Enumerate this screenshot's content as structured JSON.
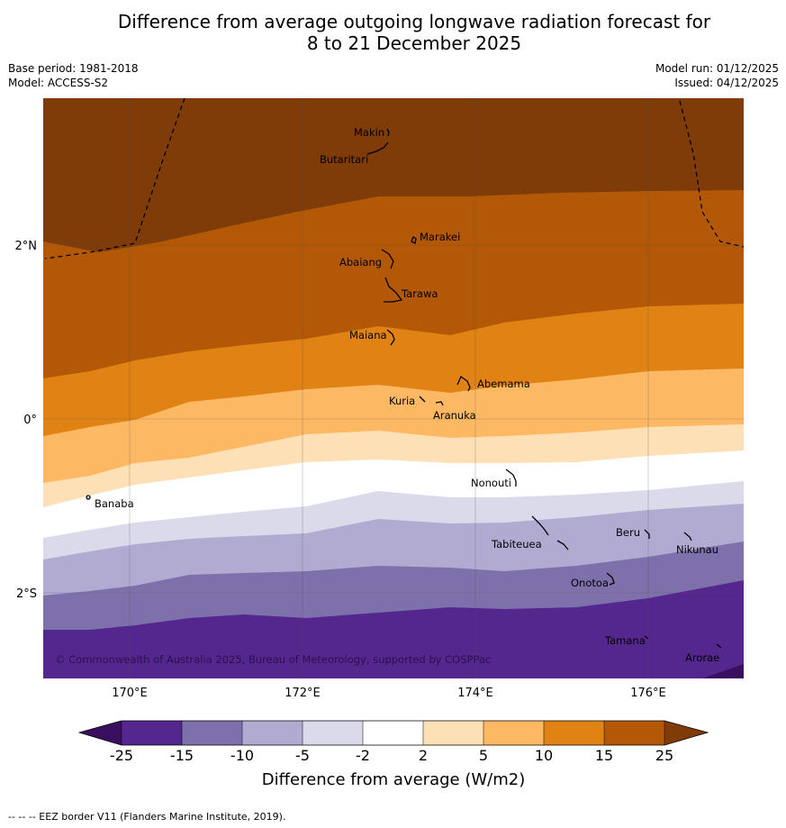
{
  "title": {
    "line1": "Difference from average outgoing longwave radiation forecast for",
    "line2": "8 to 21 December 2025"
  },
  "meta": {
    "base_period": "Base period: 1981-2018",
    "model": "Model: ACCESS-S2",
    "model_run": "Model run: 01/12/2025",
    "issued": "Issued: 04/12/2025"
  },
  "map": {
    "lat_labels": [
      "2°N",
      "0°",
      "2°S"
    ],
    "lon_labels": [
      "170°E",
      "172°E",
      "174°E",
      "176°E"
    ],
    "copyright": "© Commonwealth of Australia 2025, Bureau of Meteorology, supported by COSPPac",
    "places": [
      "Makin",
      "Butaritari",
      "Marakei",
      "Abaiang",
      "Tarawa",
      "Maiana",
      "Abemama",
      "Kuria",
      "Aranuka",
      "Nonouti",
      "Banaba",
      "Tabiteuea",
      "Beru",
      "Nikunau",
      "Onotoa",
      "Tamana",
      "Arorae"
    ]
  },
  "colorbar": {
    "ticks": [
      "-25",
      "-15",
      "-10",
      "-5",
      "-2",
      "2",
      "5",
      "10",
      "15",
      "25"
    ],
    "colors": [
      "#3a0f60",
      "#54278f",
      "#7e70ab",
      "#b1abd2",
      "#dadaeb",
      "#ffffff",
      "#fee0b6",
      "#fdb863",
      "#e08214",
      "#b35806",
      "#7f3b08"
    ],
    "label": "Difference from average (W/m2)"
  },
  "footer": "--  --  -- EEZ border V11 (Flanders Marine Institute, 2019)."
}
